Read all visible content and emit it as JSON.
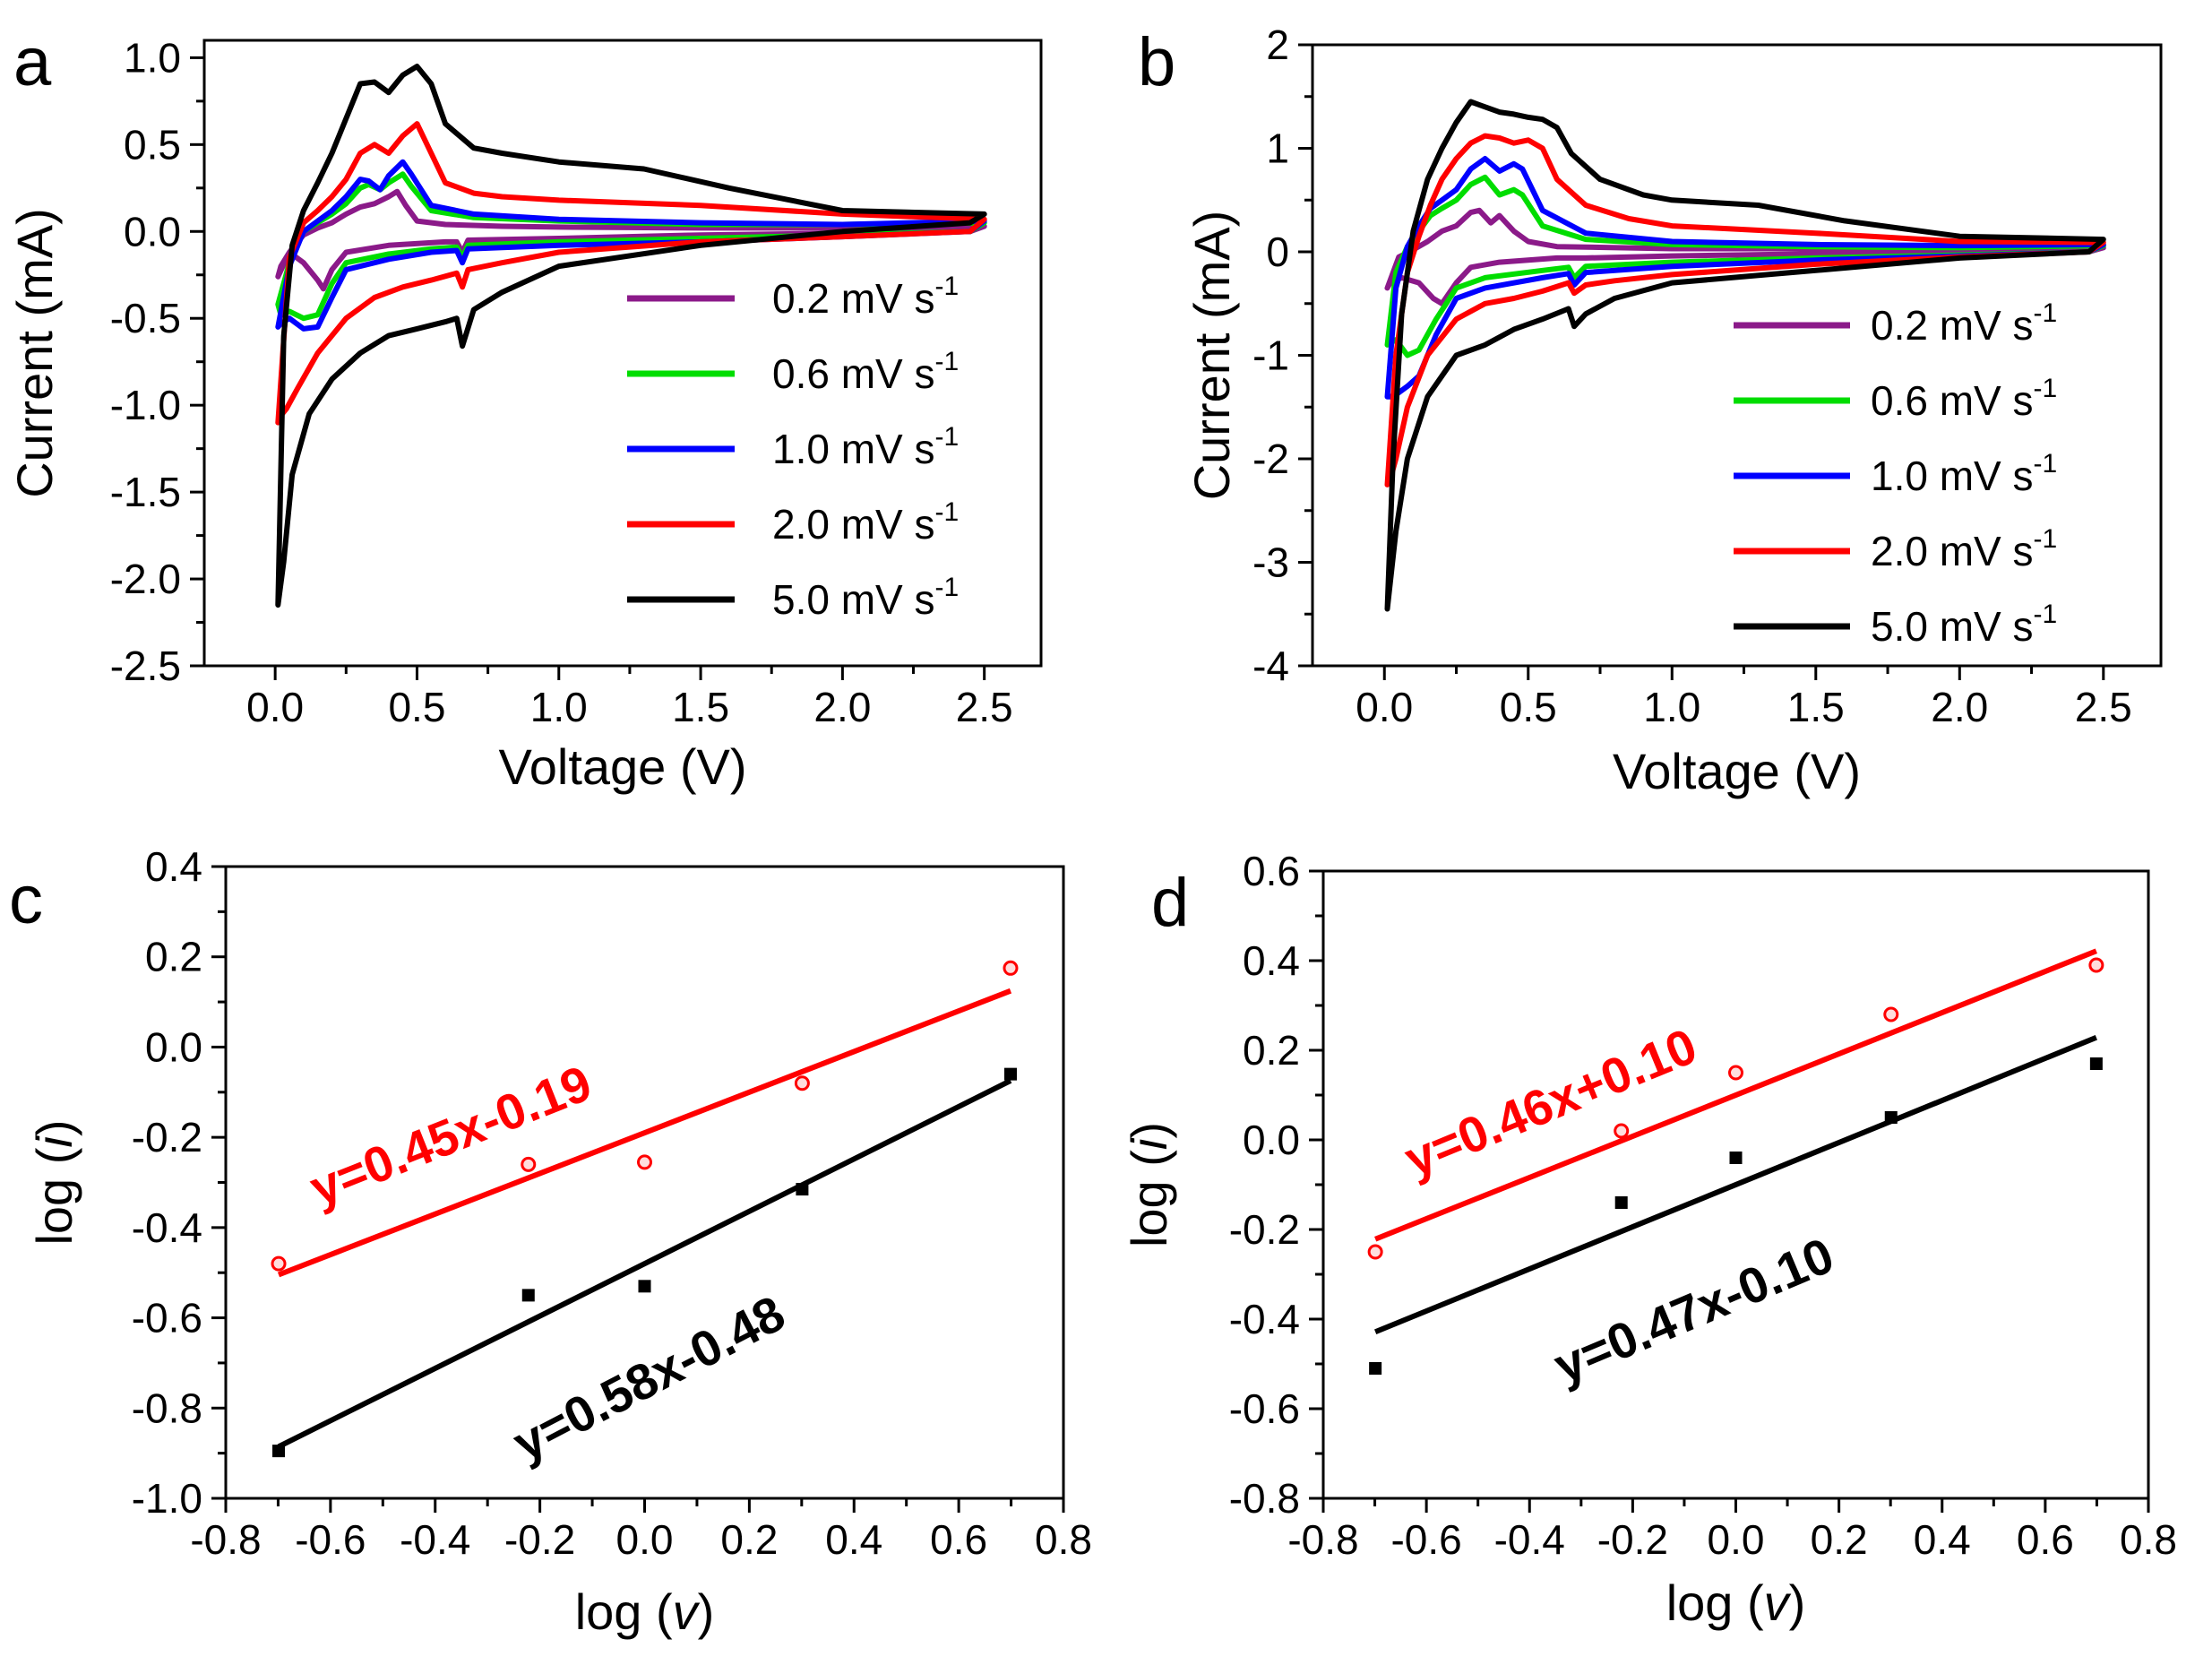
{
  "colors": {
    "axis": "#000000",
    "series": {
      "0.2": "#8B1A89",
      "0.6": "#00DD00",
      "1.0": "#0000FF",
      "2.0": "#FF0000",
      "5.0": "#000000"
    },
    "fit_red": "#FF0000",
    "fit_black": "#000000"
  },
  "chart_data": [
    {
      "panel_label": "a",
      "type": "line",
      "xlabel": "Voltage (V)",
      "ylabel": "Current (mA)",
      "xlim": [
        -0.25,
        2.7
      ],
      "ylim": [
        -2.5,
        1.1
      ],
      "xticks": [
        "0.0",
        "0.5",
        "1.0",
        "1.5",
        "2.0",
        "2.5"
      ],
      "xtick_values": [
        0.0,
        0.5,
        1.0,
        1.5,
        2.0,
        2.5
      ],
      "yticks": [
        "-2.5",
        "-2.0",
        "-1.5",
        "-1.0",
        "-0.5",
        "0.0",
        "0.5",
        "1.0"
      ],
      "ytick_values": [
        -2.5,
        -2.0,
        -1.5,
        -1.0,
        -0.5,
        0.0,
        0.5,
        1.0
      ],
      "legend": [
        "0.2 mV s-1",
        "0.6 mV s-1",
        "1.0 mV s-1",
        "2.0 mV s-1",
        "5.0 mV s-1"
      ],
      "legend_position": "lower-right",
      "series": [
        {
          "name": "0.2 mV s-1",
          "key": "0.2",
          "x": [
            0.01,
            0.05,
            0.1,
            0.15,
            0.2,
            0.25,
            0.3,
            0.35,
            0.4,
            0.43,
            0.46,
            0.5,
            0.6,
            0.8,
            1.0,
            1.5,
            2.0,
            2.5,
            2.45,
            2.0,
            1.5,
            1.0,
            0.68,
            0.66,
            0.64,
            0.6,
            0.4,
            0.25,
            0.2,
            0.17,
            0.15,
            0.1,
            0.05,
            0.02,
            0.01
          ],
          "y": [
            -0.26,
            -0.12,
            -0.02,
            0.02,
            0.05,
            0.1,
            0.14,
            0.16,
            0.2,
            0.23,
            0.15,
            0.06,
            0.04,
            0.03,
            0.025,
            0.02,
            0.02,
            0.03,
            0.0,
            -0.01,
            -0.02,
            -0.04,
            -0.05,
            -0.12,
            -0.06,
            -0.06,
            -0.08,
            -0.12,
            -0.22,
            -0.33,
            -0.28,
            -0.18,
            -0.12,
            -0.2,
            -0.26
          ]
        },
        {
          "name": "0.6 mV s-1",
          "key": "0.6",
          "x": [
            0.01,
            0.05,
            0.1,
            0.15,
            0.2,
            0.25,
            0.3,
            0.33,
            0.37,
            0.4,
            0.45,
            0.48,
            0.55,
            0.7,
            1.0,
            1.5,
            2.0,
            2.5,
            2.45,
            2.0,
            1.5,
            1.0,
            0.68,
            0.66,
            0.64,
            0.55,
            0.4,
            0.25,
            0.2,
            0.15,
            0.1,
            0.05,
            0.02,
            0.01
          ],
          "y": [
            -0.42,
            -0.18,
            0.0,
            0.05,
            0.1,
            0.16,
            0.25,
            0.27,
            0.24,
            0.28,
            0.33,
            0.26,
            0.12,
            0.08,
            0.06,
            0.04,
            0.04,
            0.05,
            0.0,
            -0.02,
            -0.04,
            -0.06,
            -0.08,
            -0.15,
            -0.09,
            -0.1,
            -0.13,
            -0.18,
            -0.3,
            -0.48,
            -0.5,
            -0.46,
            -0.48,
            -0.42
          ]
        },
        {
          "name": "1.0 mV s-1",
          "key": "1.0",
          "x": [
            0.01,
            0.05,
            0.1,
            0.15,
            0.2,
            0.25,
            0.3,
            0.33,
            0.37,
            0.4,
            0.45,
            0.48,
            0.55,
            0.7,
            1.0,
            1.5,
            2.0,
            2.5,
            2.45,
            2.0,
            1.5,
            1.0,
            0.68,
            0.66,
            0.64,
            0.55,
            0.4,
            0.25,
            0.2,
            0.15,
            0.1,
            0.05,
            0.02,
            0.01
          ],
          "y": [
            -0.55,
            -0.2,
            0.0,
            0.06,
            0.12,
            0.2,
            0.3,
            0.29,
            0.24,
            0.32,
            0.4,
            0.33,
            0.15,
            0.1,
            0.07,
            0.05,
            0.04,
            0.06,
            0.0,
            -0.03,
            -0.06,
            -0.08,
            -0.1,
            -0.18,
            -0.11,
            -0.12,
            -0.16,
            -0.22,
            -0.38,
            -0.55,
            -0.56,
            -0.5,
            -0.53,
            -0.55
          ]
        },
        {
          "name": "2.0 mV s-1",
          "key": "2.0",
          "x": [
            0.01,
            0.05,
            0.1,
            0.15,
            0.2,
            0.25,
            0.3,
            0.35,
            0.4,
            0.45,
            0.5,
            0.55,
            0.6,
            0.7,
            0.8,
            1.0,
            1.5,
            2.0,
            2.5,
            2.45,
            2.0,
            1.5,
            1.0,
            0.8,
            0.68,
            0.66,
            0.64,
            0.55,
            0.45,
            0.35,
            0.25,
            0.15,
            0.08,
            0.04,
            0.02,
            0.01
          ],
          "y": [
            -1.1,
            -0.15,
            0.05,
            0.12,
            0.2,
            0.3,
            0.45,
            0.5,
            0.45,
            0.55,
            0.62,
            0.45,
            0.28,
            0.22,
            0.2,
            0.18,
            0.15,
            0.1,
            0.07,
            0.0,
            -0.03,
            -0.06,
            -0.12,
            -0.18,
            -0.22,
            -0.32,
            -0.24,
            -0.28,
            -0.32,
            -0.38,
            -0.5,
            -0.7,
            -0.9,
            -1.02,
            -1.06,
            -1.1
          ]
        },
        {
          "name": "5.0 mV s-1",
          "key": "5.0",
          "x": [
            0.01,
            0.03,
            0.06,
            0.1,
            0.15,
            0.2,
            0.25,
            0.3,
            0.35,
            0.4,
            0.45,
            0.5,
            0.55,
            0.6,
            0.7,
            0.8,
            1.0,
            1.3,
            1.6,
            2.0,
            2.5,
            2.45,
            2.0,
            1.5,
            1.0,
            0.8,
            0.7,
            0.66,
            0.64,
            0.6,
            0.5,
            0.4,
            0.3,
            0.2,
            0.12,
            0.06,
            0.03,
            0.01
          ],
          "y": [
            -2.15,
            -0.6,
            -0.08,
            0.12,
            0.28,
            0.45,
            0.65,
            0.85,
            0.86,
            0.8,
            0.9,
            0.95,
            0.85,
            0.62,
            0.48,
            0.45,
            0.4,
            0.36,
            0.25,
            0.12,
            0.1,
            0.05,
            0.0,
            -0.08,
            -0.2,
            -0.35,
            -0.45,
            -0.66,
            -0.5,
            -0.52,
            -0.56,
            -0.6,
            -0.7,
            -0.85,
            -1.05,
            -1.4,
            -1.9,
            -2.15
          ]
        }
      ]
    },
    {
      "panel_label": "b",
      "type": "line",
      "xlabel": "Voltage (V)",
      "ylabel": "Current (mA)",
      "xlim": [
        -0.25,
        2.7
      ],
      "ylim": [
        -4,
        2
      ],
      "xticks": [
        "0.0",
        "0.5",
        "1.0",
        "1.5",
        "2.0",
        "2.5"
      ],
      "xtick_values": [
        0.0,
        0.5,
        1.0,
        1.5,
        2.0,
        2.5
      ],
      "yticks": [
        "-4",
        "-3",
        "-2",
        "-1",
        "0",
        "1",
        "2"
      ],
      "ytick_values": [
        -4,
        -3,
        -2,
        -1,
        0,
        1,
        2
      ],
      "legend": [
        "0.2 mV s-1",
        "0.6 mV s-1",
        "1.0 mV s-1",
        "2.0 mV s-1",
        "5.0 mV s-1"
      ],
      "legend_position": "lower-right",
      "series": [
        {
          "name": "0.2 mV s-1",
          "key": "0.2",
          "x": [
            0.01,
            0.05,
            0.1,
            0.15,
            0.2,
            0.25,
            0.3,
            0.33,
            0.37,
            0.4,
            0.45,
            0.5,
            0.6,
            1.0,
            1.5,
            2.0,
            2.5,
            2.45,
            2.0,
            1.5,
            1.0,
            0.7,
            0.6,
            0.4,
            0.3,
            0.25,
            0.2,
            0.17,
            0.12,
            0.06,
            0.02,
            0.01
          ],
          "y": [
            -0.35,
            -0.05,
            0.02,
            0.1,
            0.2,
            0.25,
            0.38,
            0.4,
            0.28,
            0.35,
            0.2,
            0.1,
            0.05,
            0.03,
            0.03,
            0.03,
            0.04,
            0.0,
            -0.01,
            -0.02,
            -0.04,
            -0.06,
            -0.06,
            -0.1,
            -0.15,
            -0.3,
            -0.5,
            -0.45,
            -0.3,
            -0.25,
            -0.3,
            -0.35
          ]
        },
        {
          "name": "0.6 mV s-1",
          "key": "0.6",
          "x": [
            0.01,
            0.04,
            0.08,
            0.12,
            0.16,
            0.2,
            0.25,
            0.3,
            0.35,
            0.4,
            0.45,
            0.48,
            0.55,
            0.7,
            1.0,
            1.5,
            2.0,
            2.5,
            2.45,
            2.0,
            1.5,
            1.0,
            0.7,
            0.66,
            0.64,
            0.55,
            0.35,
            0.25,
            0.18,
            0.12,
            0.08,
            0.04,
            0.02,
            0.01
          ],
          "y": [
            -0.9,
            -0.2,
            0.05,
            0.2,
            0.35,
            0.42,
            0.5,
            0.65,
            0.72,
            0.55,
            0.6,
            0.55,
            0.25,
            0.12,
            0.07,
            0.05,
            0.04,
            0.06,
            0.0,
            -0.03,
            -0.06,
            -0.1,
            -0.14,
            -0.25,
            -0.15,
            -0.18,
            -0.25,
            -0.35,
            -0.65,
            -0.95,
            -1.0,
            -0.85,
            -0.88,
            -0.9
          ]
        },
        {
          "name": "1.0 mV s-1",
          "key": "1.0",
          "x": [
            0.01,
            0.04,
            0.08,
            0.12,
            0.16,
            0.2,
            0.25,
            0.3,
            0.35,
            0.4,
            0.45,
            0.48,
            0.55,
            0.7,
            1.0,
            1.5,
            2.0,
            2.5,
            2.45,
            2.0,
            1.5,
            1.0,
            0.7,
            0.66,
            0.64,
            0.55,
            0.35,
            0.25,
            0.18,
            0.12,
            0.08,
            0.04,
            0.02,
            0.01
          ],
          "y": [
            -1.4,
            -0.35,
            0.05,
            0.25,
            0.42,
            0.5,
            0.6,
            0.8,
            0.9,
            0.78,
            0.85,
            0.8,
            0.4,
            0.18,
            0.1,
            0.07,
            0.06,
            0.07,
            0.0,
            -0.04,
            -0.08,
            -0.14,
            -0.2,
            -0.32,
            -0.21,
            -0.25,
            -0.35,
            -0.45,
            -0.8,
            -1.2,
            -1.3,
            -1.38,
            -1.4,
            -1.4
          ]
        },
        {
          "name": "2.0 mV s-1",
          "key": "2.0",
          "x": [
            0.01,
            0.04,
            0.08,
            0.12,
            0.16,
            0.2,
            0.25,
            0.3,
            0.35,
            0.4,
            0.45,
            0.5,
            0.55,
            0.6,
            0.7,
            0.85,
            1.0,
            1.5,
            2.0,
            2.5,
            2.45,
            2.0,
            1.5,
            1.0,
            0.8,
            0.7,
            0.66,
            0.64,
            0.55,
            0.45,
            0.35,
            0.25,
            0.15,
            0.08,
            0.04,
            0.02,
            0.01
          ],
          "y": [
            -2.25,
            -1.0,
            -0.2,
            0.15,
            0.45,
            0.7,
            0.9,
            1.05,
            1.12,
            1.1,
            1.05,
            1.08,
            1.0,
            0.7,
            0.45,
            0.32,
            0.25,
            0.18,
            0.1,
            0.09,
            0.0,
            -0.05,
            -0.12,
            -0.22,
            -0.28,
            -0.32,
            -0.4,
            -0.3,
            -0.38,
            -0.45,
            -0.5,
            -0.65,
            -1.0,
            -1.5,
            -2.0,
            -2.2,
            -2.25
          ]
        },
        {
          "name": "5.0 mV s-1",
          "key": "5.0",
          "x": [
            0.01,
            0.03,
            0.06,
            0.1,
            0.15,
            0.2,
            0.25,
            0.3,
            0.35,
            0.4,
            0.45,
            0.5,
            0.55,
            0.6,
            0.65,
            0.75,
            0.9,
            1.0,
            1.3,
            1.6,
            2.0,
            2.5,
            2.45,
            2.0,
            1.5,
            1.0,
            0.8,
            0.7,
            0.66,
            0.64,
            0.55,
            0.45,
            0.35,
            0.25,
            0.15,
            0.08,
            0.04,
            0.02,
            0.01
          ],
          "y": [
            -3.45,
            -2.0,
            -0.6,
            0.2,
            0.7,
            1.0,
            1.25,
            1.45,
            1.4,
            1.35,
            1.33,
            1.3,
            1.28,
            1.2,
            0.95,
            0.7,
            0.55,
            0.5,
            0.45,
            0.3,
            0.15,
            0.12,
            0.0,
            -0.06,
            -0.18,
            -0.3,
            -0.45,
            -0.6,
            -0.72,
            -0.55,
            -0.65,
            -0.75,
            -0.9,
            -1.0,
            -1.4,
            -2.0,
            -2.7,
            -3.2,
            -3.45
          ]
        }
      ]
    },
    {
      "panel_label": "c",
      "type": "scatter",
      "xlabel": "log (v)",
      "ylabel": "log (i)",
      "xlim": [
        -0.8,
        0.8
      ],
      "ylim": [
        -1.0,
        0.4
      ],
      "xticks": [
        "-0.8",
        "-0.6",
        "-0.4",
        "-0.2",
        "0.0",
        "0.2",
        "0.4",
        "0.6",
        "0.8"
      ],
      "xtick_values": [
        -0.8,
        -0.6,
        -0.4,
        -0.2,
        0.0,
        0.2,
        0.4,
        0.6,
        0.8
      ],
      "yticks": [
        "-1.0",
        "-0.8",
        "-0.6",
        "-0.4",
        "-0.2",
        "0.0",
        "0.2",
        "0.4"
      ],
      "ytick_values": [
        -1.0,
        -0.8,
        -0.6,
        -0.4,
        -0.2,
        0.0,
        0.2,
        0.4
      ],
      "series": [
        {
          "name": "red",
          "marker": "circle",
          "color_key": "fit_red",
          "x": [
            -0.699,
            -0.222,
            0.0,
            0.301,
            0.699
          ],
          "y": [
            -0.48,
            -0.26,
            -0.255,
            -0.08,
            0.175
          ],
          "fit": {
            "slope": 0.45,
            "intercept": -0.19,
            "label": "y=0.45x-0.19"
          }
        },
        {
          "name": "black",
          "marker": "square",
          "color_key": "fit_black",
          "x": [
            -0.699,
            -0.222,
            0.0,
            0.301,
            0.699
          ],
          "y": [
            -0.895,
            -0.55,
            -0.53,
            -0.315,
            -0.06
          ],
          "fit": {
            "slope": 0.58,
            "intercept": -0.48,
            "label": "y=0.58x-0.48"
          }
        }
      ]
    },
    {
      "panel_label": "d",
      "type": "scatter",
      "xlabel": "log (v)",
      "ylabel": "log (i)",
      "xlim": [
        -0.8,
        0.8
      ],
      "ylim": [
        -0.8,
        0.6
      ],
      "xticks": [
        "-0.8",
        "-0.6",
        "-0.4",
        "-0.2",
        "0.0",
        "0.2",
        "0.4",
        "0.6",
        "0.8"
      ],
      "xtick_values": [
        -0.8,
        -0.6,
        -0.4,
        -0.2,
        0.0,
        0.2,
        0.4,
        0.6,
        0.8
      ],
      "yticks": [
        "-0.8",
        "-0.6",
        "-0.4",
        "-0.2",
        "0.0",
        "0.2",
        "0.4",
        "0.6"
      ],
      "ytick_values": [
        -0.8,
        -0.6,
        -0.4,
        -0.2,
        0.0,
        0.2,
        0.4,
        0.6
      ],
      "series": [
        {
          "name": "red",
          "marker": "circle",
          "color_key": "fit_red",
          "x": [
            -0.699,
            -0.222,
            0.0,
            0.301,
            0.699
          ],
          "y": [
            -0.25,
            0.02,
            0.15,
            0.28,
            0.39
          ],
          "fit": {
            "slope": 0.46,
            "intercept": 0.1,
            "label": "y=0.46x+0.10"
          }
        },
        {
          "name": "black",
          "marker": "square",
          "color_key": "fit_black",
          "x": [
            -0.699,
            -0.222,
            0.0,
            0.301,
            0.699
          ],
          "y": [
            -0.51,
            -0.14,
            -0.04,
            0.05,
            0.17
          ],
          "fit": {
            "slope": 0.47,
            "intercept": -0.1,
            "label": "y=0.47x-0.10"
          }
        }
      ]
    }
  ]
}
